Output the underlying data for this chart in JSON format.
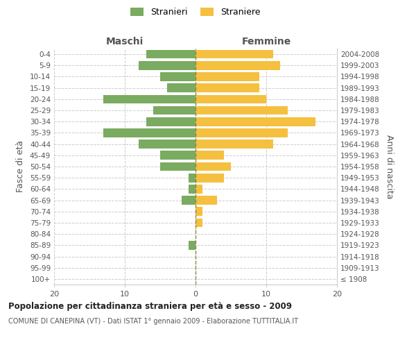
{
  "age_groups": [
    "100+",
    "95-99",
    "90-94",
    "85-89",
    "80-84",
    "75-79",
    "70-74",
    "65-69",
    "60-64",
    "55-59",
    "50-54",
    "45-49",
    "40-44",
    "35-39",
    "30-34",
    "25-29",
    "20-24",
    "15-19",
    "10-14",
    "5-9",
    "0-4"
  ],
  "birth_years": [
    "≤ 1908",
    "1909-1913",
    "1914-1918",
    "1919-1923",
    "1924-1928",
    "1929-1933",
    "1934-1938",
    "1939-1943",
    "1944-1948",
    "1949-1953",
    "1954-1958",
    "1959-1963",
    "1964-1968",
    "1969-1973",
    "1974-1978",
    "1979-1983",
    "1984-1988",
    "1989-1993",
    "1994-1998",
    "1999-2003",
    "2004-2008"
  ],
  "males": [
    0,
    0,
    0,
    1,
    0,
    0,
    0,
    2,
    1,
    1,
    5,
    5,
    8,
    13,
    7,
    6,
    13,
    4,
    5,
    8,
    7
  ],
  "females": [
    0,
    0,
    0,
    0,
    0,
    1,
    1,
    3,
    1,
    4,
    5,
    4,
    11,
    13,
    17,
    13,
    10,
    9,
    9,
    12,
    11
  ],
  "male_color": "#7aab60",
  "female_color": "#f5c040",
  "background_color": "#ffffff",
  "grid_color": "#cccccc",
  "center_line_color": "#888844",
  "xlim": 20,
  "title": "Popolazione per cittadinanza straniera per età e sesso - 2009",
  "subtitle": "COMUNE DI CANEPINA (VT) - Dati ISTAT 1° gennaio 2009 - Elaborazione TUTTITALIA.IT",
  "xlabel_left": "Maschi",
  "xlabel_right": "Femmine",
  "ylabel_left": "Fasce di età",
  "ylabel_right": "Anni di nascita",
  "legend_male": "Stranieri",
  "legend_female": "Straniere"
}
